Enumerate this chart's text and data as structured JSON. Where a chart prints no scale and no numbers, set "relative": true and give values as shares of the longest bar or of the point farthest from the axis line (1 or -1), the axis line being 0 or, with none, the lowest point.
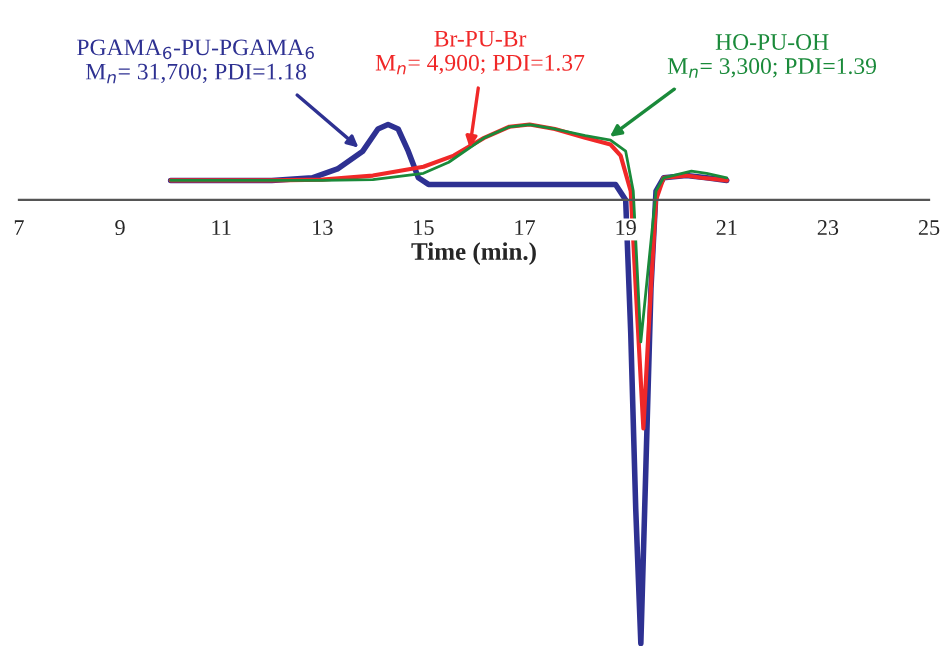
{
  "chart_data": {
    "type": "line",
    "relative": true,
    "xlabel": "Time (min.)",
    "xlim": [
      7,
      25
    ],
    "xticks": [
      7,
      9,
      11,
      13,
      15,
      17,
      19,
      21,
      23,
      25
    ],
    "grid": false,
    "legend": false,
    "marker": "none",
    "line_style": "solid",
    "series": [
      {
        "color": "#2e3192",
        "x": [
          10,
          12,
          12.8,
          13.3,
          13.8,
          14.1,
          14.3,
          14.5,
          14.7,
          14.9,
          15.1,
          16,
          18,
          18.8,
          19.0,
          19.1,
          19.2,
          19.3,
          19.4,
          19.5,
          19.6,
          19.75,
          20.2,
          20.6,
          21
        ],
        "values": [
          0.044,
          0.044,
          0.05,
          0.07,
          0.11,
          0.16,
          0.17,
          0.16,
          0.11,
          0.05,
          0.035,
          0.035,
          0.035,
          0.035,
          0.0,
          -0.3,
          -0.7,
          -1.0,
          -0.6,
          -0.2,
          0.02,
          0.05,
          0.055,
          0.05,
          0.044
        ]
      },
      {
        "color": "#f02828",
        "x": [
          10,
          12,
          13,
          14,
          15,
          15.6,
          16.2,
          16.7,
          17.1,
          17.6,
          18.2,
          18.7,
          18.9,
          19.1,
          19.2,
          19.35,
          19.45,
          19.6,
          19.75,
          20.2,
          20.5,
          21
        ],
        "values": [
          0.044,
          0.044,
          0.046,
          0.055,
          0.075,
          0.1,
          0.14,
          0.165,
          0.17,
          0.16,
          0.14,
          0.125,
          0.1,
          0.02,
          -0.2,
          -0.515,
          -0.3,
          0.0,
          0.05,
          0.055,
          0.05,
          0.044
        ]
      },
      {
        "color": "#1a8a3a",
        "x": [
          10,
          13,
          14,
          15,
          15.5,
          16.2,
          16.7,
          17.1,
          17.6,
          18.2,
          18.7,
          19.0,
          19.15,
          19.3,
          19.45,
          19.6,
          19.75,
          20.3,
          20.6,
          21
        ],
        "values": [
          0.044,
          0.044,
          0.046,
          0.06,
          0.085,
          0.14,
          0.165,
          0.17,
          0.16,
          0.145,
          0.135,
          0.11,
          0.02,
          -0.32,
          -0.15,
          0.02,
          0.05,
          0.065,
          0.06,
          0.05
        ]
      }
    ],
    "annotations": [
      "PGAMA$_{6}$-PU-PGAMA$_{6}$",
      {
        "text": "M$_{n}$= 31,700; PDI=1.18",
        "x": 13.8,
        "y": 0.11
      },
      "Br-PU-Br",
      {
        "text": "M$_{n}$= 4,900; PDI=1.37",
        "x": 15.9,
        "y": 0.105
      },
      "HO-PU-OH",
      {
        "text": "M$_{n}$= 3,300; PDI=1.39",
        "x": 18.6,
        "y": 0.135
      }
    ]
  }
}
